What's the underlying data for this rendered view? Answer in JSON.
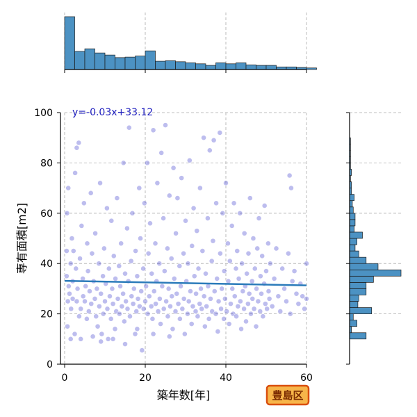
{
  "chart_data": {
    "type": "scatter",
    "xlabel": "築年数[年]",
    "ylabel": "専有面積[m2]",
    "xlim": [
      0,
      60
    ],
    "ylim": [
      0,
      100
    ],
    "xticks": [
      0,
      20,
      40,
      60
    ],
    "yticks": [
      0,
      20,
      40,
      60,
      80,
      100
    ],
    "grid": true,
    "grid_style": "dashed",
    "point_color": "#2626c8",
    "annotation": "y=-0.03x+33.12",
    "annotation_color": "#1f1fbf",
    "regression": {
      "slope": -0.03,
      "intercept": 33.12,
      "x_range": [
        0,
        60
      ],
      "color": "#2b7bba"
    },
    "badge": {
      "text": "豊島区",
      "fill": "#f7b54a",
      "border": "#d94f0f"
    },
    "marginal_color": "#4c92c3",
    "x_histogram": {
      "bin_start": 0,
      "bin_width": 2.5,
      "counts": [
        102,
        35,
        40,
        32,
        28,
        23,
        24,
        26,
        36,
        16,
        17,
        15,
        13,
        11,
        8,
        13,
        11,
        13,
        9,
        8,
        8,
        5,
        5,
        4,
        3
      ]
    },
    "y_histogram": {
      "bin_start": 10,
      "bin_width": 2.5,
      "counts": [
        18,
        2,
        8,
        4,
        24,
        9,
        10,
        18,
        18,
        26,
        56,
        31,
        18,
        10,
        6,
        8,
        14,
        5,
        6,
        6,
        4,
        3,
        5,
        2,
        2,
        1,
        2,
        1,
        1,
        1,
        1,
        1
      ]
    },
    "points": [
      [
        0.5,
        35
      ],
      [
        0.5,
        45
      ],
      [
        0.6,
        60
      ],
      [
        0.7,
        15
      ],
      [
        0.8,
        25
      ],
      [
        0.9,
        70
      ],
      [
        1.0,
        31
      ],
      [
        1.2,
        28
      ],
      [
        1.5,
        40
      ],
      [
        1.6,
        22
      ],
      [
        1.8,
        50
      ],
      [
        2.0,
        26
      ],
      [
        2.0,
        33
      ],
      [
        2.2,
        45
      ],
      [
        2.5,
        12
      ],
      [
        2.6,
        76
      ],
      [
        2.8,
        38
      ],
      [
        3.0,
        25
      ],
      [
        3.0,
        86
      ],
      [
        3.2,
        30
      ],
      [
        3.5,
        88
      ],
      [
        3.6,
        19
      ],
      [
        3.8,
        42
      ],
      [
        4.0,
        22
      ],
      [
        4.2,
        55
      ],
      [
        4.5,
        34
      ],
      [
        4.6,
        27
      ],
      [
        4.8,
        64
      ],
      [
        5.0,
        25
      ],
      [
        5.2,
        31
      ],
      [
        5.5,
        18
      ],
      [
        5.6,
        48
      ],
      [
        5.8,
        37
      ],
      [
        6.0,
        21
      ],
      [
        6.2,
        29
      ],
      [
        6.5,
        68
      ],
      [
        6.6,
        24
      ],
      [
        6.8,
        44
      ],
      [
        7.0,
        11
      ],
      [
        7.2,
        33
      ],
      [
        7.5,
        26
      ],
      [
        7.6,
        52
      ],
      [
        7.8,
        19
      ],
      [
        8.0,
        30
      ],
      [
        8.2,
        15
      ],
      [
        8.5,
        40
      ],
      [
        8.6,
        23
      ],
      [
        8.8,
        72
      ],
      [
        9.0,
        28
      ],
      [
        9.2,
        12
      ],
      [
        9.5,
        35
      ],
      [
        9.6,
        20
      ],
      [
        9.8,
        46
      ],
      [
        10.0,
        25
      ],
      [
        10.2,
        32
      ],
      [
        10.5,
        62
      ],
      [
        10.6,
        22
      ],
      [
        10.8,
        10
      ],
      [
        11.0,
        38
      ],
      [
        11.2,
        27
      ],
      [
        11.5,
        18
      ],
      [
        11.6,
        57
      ],
      [
        11.8,
        30
      ],
      [
        12.0,
        24
      ],
      [
        12.2,
        43
      ],
      [
        12.5,
        14
      ],
      [
        12.6,
        34
      ],
      [
        12.8,
        21
      ],
      [
        13.0,
        66
      ],
      [
        13.2,
        26
      ],
      [
        13.5,
        39
      ],
      [
        13.6,
        20
      ],
      [
        13.8,
        31
      ],
      [
        14.0,
        48
      ],
      [
        14.2,
        23
      ],
      [
        14.5,
        28
      ],
      [
        14.6,
        80
      ],
      [
        14.8,
        17
      ],
      [
        15.0,
        36
      ],
      [
        15.2,
        25
      ],
      [
        15.5,
        54
      ],
      [
        15.6,
        22
      ],
      [
        15.8,
        33
      ],
      [
        16.0,
        94
      ],
      [
        16.2,
        19
      ],
      [
        16.5,
        41
      ],
      [
        16.6,
        27
      ],
      [
        16.8,
        60
      ],
      [
        17.0,
        24
      ],
      [
        17.2,
        30
      ],
      [
        17.5,
        12
      ],
      [
        17.6,
        45
      ],
      [
        17.8,
        21
      ],
      [
        18.0,
        35
      ],
      [
        18.2,
        26
      ],
      [
        18.5,
        70
      ],
      [
        18.6,
        23
      ],
      [
        18.8,
        50
      ],
      [
        19.0,
        29
      ],
      [
        19.2,
        5.5
      ],
      [
        19.5,
        38
      ],
      [
        19.6,
        22
      ],
      [
        19.8,
        64
      ],
      [
        20.0,
        25
      ],
      [
        20.2,
        31
      ],
      [
        20.5,
        80
      ],
      [
        20.6,
        20
      ],
      [
        20.8,
        44
      ],
      [
        21.0,
        27
      ],
      [
        21.2,
        56
      ],
      [
        21.5,
        23
      ],
      [
        21.6,
        36
      ],
      [
        21.8,
        18
      ],
      [
        22.0,
        93
      ],
      [
        22.2,
        29
      ],
      [
        22.5,
        48
      ],
      [
        22.6,
        24
      ],
      [
        22.8,
        33
      ],
      [
        23.0,
        72
      ],
      [
        23.2,
        21
      ],
      [
        23.5,
        40
      ],
      [
        23.6,
        26
      ],
      [
        23.8,
        16
      ],
      [
        24.0,
        84
      ],
      [
        24.2,
        31
      ],
      [
        24.5,
        58
      ],
      [
        24.6,
        22
      ],
      [
        24.8,
        37
      ],
      [
        25.0,
        95
      ],
      [
        25.2,
        25
      ],
      [
        25.5,
        46
      ],
      [
        25.6,
        19
      ],
      [
        25.8,
        30
      ],
      [
        26.0,
        67
      ],
      [
        26.2,
        23
      ],
      [
        26.5,
        42
      ],
      [
        26.6,
        27
      ],
      [
        26.8,
        14
      ],
      [
        27.0,
        78
      ],
      [
        27.2,
        34
      ],
      [
        27.5,
        21
      ],
      [
        27.6,
        52
      ],
      [
        27.8,
        28
      ],
      [
        28.0,
        66
      ],
      [
        28.2,
        24
      ],
      [
        28.5,
        39
      ],
      [
        28.6,
        18
      ],
      [
        28.8,
        31
      ],
      [
        29.0,
        74
      ],
      [
        29.2,
        22
      ],
      [
        29.5,
        44
      ],
      [
        29.6,
        26
      ],
      [
        29.8,
        12
      ],
      [
        30.0,
        57
      ],
      [
        30.2,
        33
      ],
      [
        30.5,
        20
      ],
      [
        30.6,
        40
      ],
      [
        30.8,
        25
      ],
      [
        31.0,
        81
      ],
      [
        31.2,
        29
      ],
      [
        31.5,
        16
      ],
      [
        31.6,
        47
      ],
      [
        31.8,
        23
      ],
      [
        32.0,
        62
      ],
      [
        32.2,
        35
      ],
      [
        32.5,
        21
      ],
      [
        32.6,
        28
      ],
      [
        32.8,
        53
      ],
      [
        33.0,
        19
      ],
      [
        33.2,
        38
      ],
      [
        33.5,
        24
      ],
      [
        33.6,
        70
      ],
      [
        33.8,
        30
      ],
      [
        34.0,
        22
      ],
      [
        34.2,
        45
      ],
      [
        34.5,
        90
      ],
      [
        34.6,
        27
      ],
      [
        34.8,
        15
      ],
      [
        35.0,
        36
      ],
      [
        35.2,
        23
      ],
      [
        35.5,
        58
      ],
      [
        35.6,
        31
      ],
      [
        35.8,
        18
      ],
      [
        36.0,
        85
      ],
      [
        36.2,
        26
      ],
      [
        36.5,
        41
      ],
      [
        36.6,
        21
      ],
      [
        36.8,
        49
      ],
      [
        37.0,
        89
      ],
      [
        37.2,
        29
      ],
      [
        37.5,
        20
      ],
      [
        37.6,
        64
      ],
      [
        37.8,
        34
      ],
      [
        38.0,
        13
      ],
      [
        38.2,
        25
      ],
      [
        38.5,
        92
      ],
      [
        38.6,
        44
      ],
      [
        38.8,
        22
      ],
      [
        39.0,
        30
      ],
      [
        39.2,
        60
      ],
      [
        39.5,
        18
      ],
      [
        39.6,
        37
      ],
      [
        39.8,
        26
      ],
      [
        40.0,
        72
      ],
      [
        40.2,
        21
      ],
      [
        40.5,
        48
      ],
      [
        40.6,
        33
      ],
      [
        40.8,
        16
      ],
      [
        41.0,
        41
      ],
      [
        41.2,
        24
      ],
      [
        41.5,
        55
      ],
      [
        41.6,
        30
      ],
      [
        41.8,
        20
      ],
      [
        42.0,
        64
      ],
      [
        42.2,
        27
      ],
      [
        42.5,
        38
      ],
      [
        42.6,
        19
      ],
      [
        42.8,
        45
      ],
      [
        43.0,
        23
      ],
      [
        43.2,
        34
      ],
      [
        43.5,
        60
      ],
      [
        43.6,
        25
      ],
      [
        43.8,
        14
      ],
      [
        44.0,
        40
      ],
      [
        44.2,
        29
      ],
      [
        44.5,
        22
      ],
      [
        44.6,
        52
      ],
      [
        44.8,
        31
      ],
      [
        45.0,
        17
      ],
      [
        45.2,
        36
      ],
      [
        45.5,
        24
      ],
      [
        45.6,
        44
      ],
      [
        45.8,
        28
      ],
      [
        46.0,
        66
      ],
      [
        46.2,
        20
      ],
      [
        46.5,
        33
      ],
      [
        46.6,
        26
      ],
      [
        46.8,
        50
      ],
      [
        47.0,
        22
      ],
      [
        47.2,
        38
      ],
      [
        47.5,
        15
      ],
      [
        47.6,
        30
      ],
      [
        47.8,
        46
      ],
      [
        48.0,
        25
      ],
      [
        48.2,
        58
      ],
      [
        48.5,
        21
      ],
      [
        48.6,
        35
      ],
      [
        48.8,
        28
      ],
      [
        49.0,
        43
      ],
      [
        49.2,
        19
      ],
      [
        49.5,
        32
      ],
      [
        49.6,
        63
      ],
      [
        49.8,
        24
      ],
      [
        50.0,
        37
      ],
      [
        50.2,
        22
      ],
      [
        50.5,
        48
      ],
      [
        50.6,
        29
      ],
      [
        50.8,
        26
      ],
      [
        51.0,
        40
      ],
      [
        51.5,
        23
      ],
      [
        52.0,
        34
      ],
      [
        52.5,
        46
      ],
      [
        53.0,
        27
      ],
      [
        53.5,
        21
      ],
      [
        54.0,
        38
      ],
      [
        54.5,
        30
      ],
      [
        55.0,
        25
      ],
      [
        55.5,
        44
      ],
      [
        56.0,
        20
      ],
      [
        56.5,
        33
      ],
      [
        57.0,
        37
      ],
      [
        57.5,
        28
      ],
      [
        58.0,
        24
      ],
      [
        58.5,
        32
      ],
      [
        59.0,
        27
      ],
      [
        59.5,
        22
      ],
      [
        60.0,
        40
      ],
      [
        60.0,
        26
      ],
      [
        55.8,
        75
      ],
      [
        56.2,
        70
      ],
      [
        1.5,
        10
      ],
      [
        4.0,
        10
      ],
      [
        9.0,
        9
      ],
      [
        12.0,
        10
      ],
      [
        15.0,
        8
      ],
      [
        18.0,
        14
      ],
      [
        22.0,
        12
      ],
      [
        26.0,
        11
      ]
    ]
  }
}
